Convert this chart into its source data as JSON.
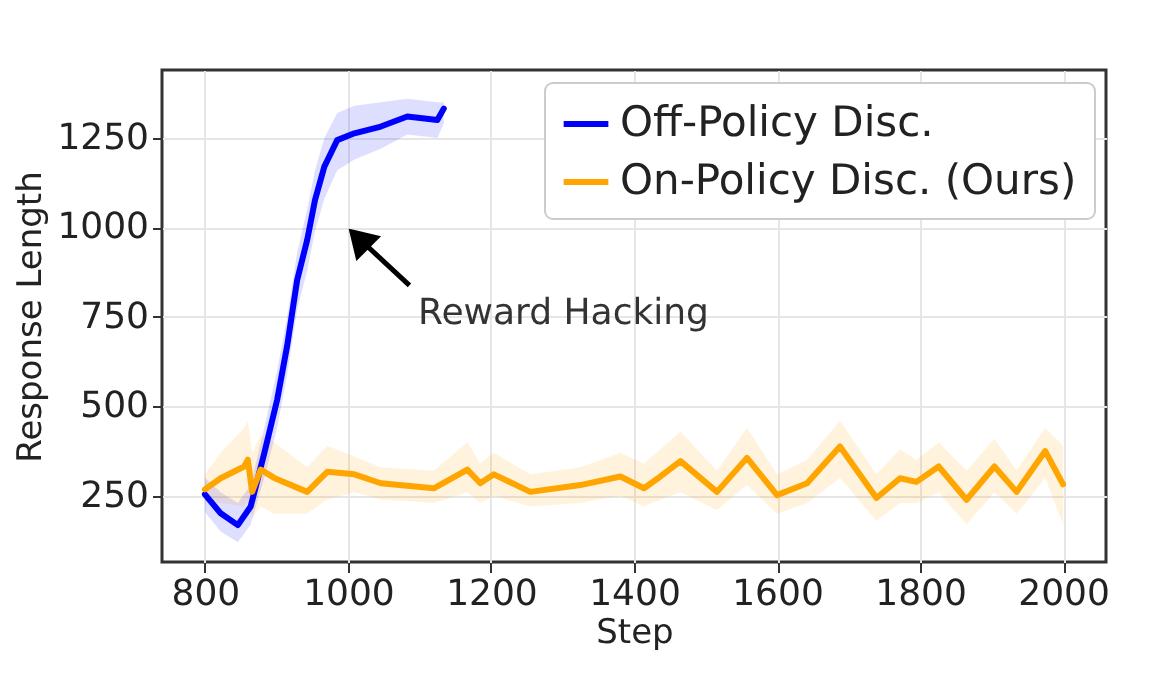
{
  "chart_data": {
    "type": "line",
    "xlabel": "Step",
    "ylabel": "Response Length",
    "xlim": [
      740,
      2060
    ],
    "ylim": [
      65,
      1440
    ],
    "xticks": [
      800,
      {
        "value": 1000,
        "label": "1000"
      },
      {
        "value": 1200,
        "label": "1200"
      },
      {
        "value": 1400,
        "label": "1400"
      },
      {
        "value": 1600,
        "label": "1600"
      },
      {
        "value": 1800,
        "label": "1800"
      },
      {
        "value": 2000,
        "label": "2000"
      }
    ],
    "yticks": [
      250,
      500,
      750,
      {
        "value": 1000,
        "label": "1000"
      },
      {
        "value": 1250,
        "label": "1250"
      }
    ],
    "grid": true,
    "legend": "top right",
    "line_style": "solid",
    "marker": "none",
    "annotations": [
      "Reward Hacking"
    ],
    "series": [
      {
        "name": "Off-Policy Disc.",
        "color": "#0000ff",
        "x": [
          800,
          822,
          846,
          864,
          883,
          901,
          915,
          929,
          943,
          954,
          967,
          985,
          1009,
          1046,
          1083,
          1125,
          1134
        ],
        "values": [
          254,
          201,
          168,
          220,
          369,
          518,
          669,
          853,
          965,
          1077,
          1170,
          1244,
          1263,
          1282,
          1310,
          1300,
          1332
        ],
        "lower": [
          204,
          150,
          120,
          170,
          300,
          440,
          590,
          770,
          880,
          990,
          1080,
          1160,
          1190,
          1220,
          1260,
          1250,
          1290
        ],
        "upper": [
          300,
          260,
          230,
          280,
          440,
          600,
          750,
          930,
          1050,
          1160,
          1250,
          1320,
          1340,
          1350,
          1360,
          1350,
          1350
        ]
      },
      {
        "name": "On-Policy Disc. (Ours)",
        "color": "#ffa500",
        "x": [
          800,
          822,
          855,
          860,
          866,
          878,
          897,
          943,
          971,
          1009,
          1046,
          1120,
          1167,
          1185,
          1204,
          1255,
          1325,
          1381,
          1414,
          1437,
          1465,
          1516,
          1558,
          1600,
          1642,
          1688,
          1739,
          1772,
          1795,
          1826,
          1865,
          1904,
          1935,
          1975,
          2000
        ],
        "values": [
          268,
          299,
          332,
          351,
          261,
          323,
          300,
          261,
          317,
          310,
          285,
          271,
          323,
          285,
          310,
          261,
          280,
          304,
          271,
          304,
          347,
          261,
          356,
          252,
          285,
          388,
          244,
          299,
          289,
          332,
          239,
          332,
          261,
          375,
          282
        ],
        "lower": [
          230,
          230,
          220,
          240,
          190,
          220,
          200,
          200,
          240,
          260,
          240,
          230,
          260,
          230,
          250,
          220,
          230,
          250,
          220,
          240,
          260,
          210,
          280,
          200,
          230,
          300,
          180,
          230,
          230,
          260,
          170,
          260,
          200,
          300,
          170
        ],
        "upper": [
          310,
          370,
          440,
          460,
          370,
          420,
          400,
          330,
          390,
          360,
          330,
          320,
          400,
          340,
          370,
          310,
          330,
          370,
          340,
          380,
          430,
          320,
          440,
          310,
          350,
          460,
          310,
          380,
          350,
          400,
          320,
          410,
          320,
          440,
          390
        ]
      }
    ]
  }
}
